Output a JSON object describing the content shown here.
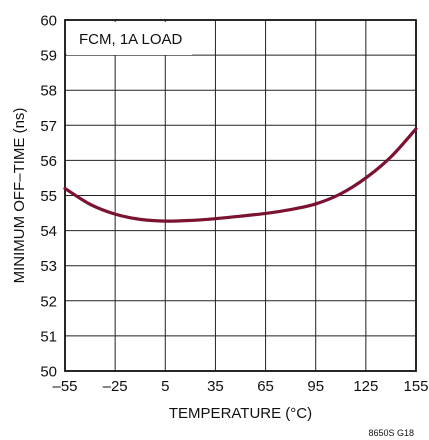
{
  "chart_data": {
    "type": "line",
    "annotation": "FCM, 1A LOAD",
    "xlabel": "TEMPERATURE (°C)",
    "ylabel": "MINIMUM OFF–TIME (ns)",
    "figure_code": "8650S G18",
    "xlim": [
      -55,
      155
    ],
    "ylim": [
      50,
      60
    ],
    "x_ticks": [
      "–55",
      "–25",
      "5",
      "35",
      "65",
      "95",
      "125",
      "155"
    ],
    "y_ticks": [
      "50",
      "51",
      "52",
      "53",
      "54",
      "55",
      "56",
      "57",
      "58",
      "59",
      "60"
    ],
    "grid": true,
    "line_color": "#7a1230",
    "series": [
      {
        "x": [
          -55,
          -40,
          -25,
          -10,
          5,
          20,
          35,
          50,
          65,
          80,
          95,
          110,
          125,
          140,
          155
        ],
        "y": [
          55.2,
          54.75,
          54.47,
          54.32,
          54.27,
          54.29,
          54.34,
          54.41,
          54.49,
          54.6,
          54.76,
          55.05,
          55.5,
          56.1,
          56.9
        ]
      }
    ]
  }
}
